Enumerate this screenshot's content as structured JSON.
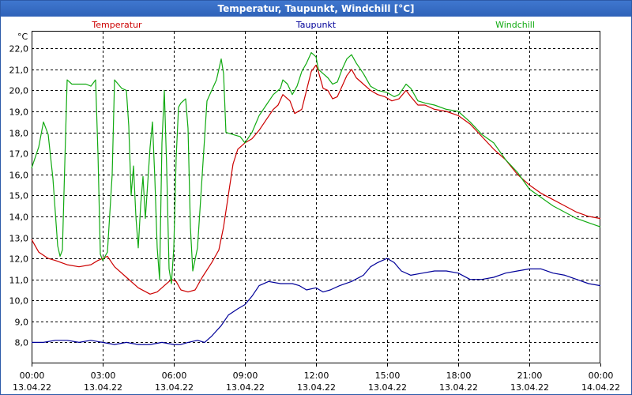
{
  "chart_data": {
    "type": "line",
    "title": "Temperatur, Taupunkt, Windchill [°C]",
    "ylabel": "°C",
    "xlabel": "",
    "ylim": [
      7.0,
      22.8
    ],
    "xlim": [
      0,
      24
    ],
    "grid": true,
    "y_ticks": [
      "8,0",
      "9,0",
      "10,0",
      "11,0",
      "12,0",
      "13,0",
      "14,0",
      "15,0",
      "16,0",
      "17,0",
      "18,0",
      "19,0",
      "20,0",
      "21,0",
      "22,0"
    ],
    "x_ticks": [
      {
        "time": "00:00",
        "date": "13.04.22"
      },
      {
        "time": "03:00",
        "date": "13.04.22"
      },
      {
        "time": "06:00",
        "date": "13.04.22"
      },
      {
        "time": "09:00",
        "date": "13.04.22"
      },
      {
        "time": "12:00",
        "date": "13.04.22"
      },
      {
        "time": "15:00",
        "date": "13.04.22"
      },
      {
        "time": "18:00",
        "date": "13.04.22"
      },
      {
        "time": "21:00",
        "date": "13.04.22"
      },
      {
        "time": "00:00",
        "date": "14.04.22"
      }
    ],
    "series": [
      {
        "name": "Temperatur",
        "color": "#cc0000",
        "points": [
          [
            0,
            12.9
          ],
          [
            0.3,
            12.3
          ],
          [
            0.7,
            12.0
          ],
          [
            1.0,
            11.9
          ],
          [
            1.5,
            11.7
          ],
          [
            2.0,
            11.6
          ],
          [
            2.5,
            11.7
          ],
          [
            2.8,
            11.9
          ],
          [
            3.0,
            12.0
          ],
          [
            3.2,
            12.1
          ],
          [
            3.5,
            11.6
          ],
          [
            4.0,
            11.1
          ],
          [
            4.5,
            10.6
          ],
          [
            5.0,
            10.3
          ],
          [
            5.3,
            10.4
          ],
          [
            5.6,
            10.7
          ],
          [
            5.9,
            11.0
          ],
          [
            6.1,
            10.9
          ],
          [
            6.3,
            10.5
          ],
          [
            6.6,
            10.4
          ],
          [
            6.9,
            10.5
          ],
          [
            7.2,
            11.1
          ],
          [
            7.6,
            11.8
          ],
          [
            7.9,
            12.4
          ],
          [
            8.1,
            13.5
          ],
          [
            8.3,
            15.0
          ],
          [
            8.5,
            16.5
          ],
          [
            8.7,
            17.2
          ],
          [
            9.0,
            17.5
          ],
          [
            9.3,
            17.7
          ],
          [
            9.6,
            18.1
          ],
          [
            9.9,
            18.6
          ],
          [
            10.2,
            19.1
          ],
          [
            10.4,
            19.3
          ],
          [
            10.6,
            19.8
          ],
          [
            10.9,
            19.5
          ],
          [
            11.1,
            18.9
          ],
          [
            11.4,
            19.1
          ],
          [
            11.6,
            20.0
          ],
          [
            11.8,
            20.9
          ],
          [
            12.0,
            21.2
          ],
          [
            12.1,
            20.9
          ],
          [
            12.3,
            20.1
          ],
          [
            12.5,
            20.0
          ],
          [
            12.7,
            19.6
          ],
          [
            12.9,
            19.7
          ],
          [
            13.1,
            20.2
          ],
          [
            13.3,
            20.7
          ],
          [
            13.5,
            21.0
          ],
          [
            13.7,
            20.6
          ],
          [
            14.0,
            20.3
          ],
          [
            14.3,
            20.0
          ],
          [
            14.6,
            19.8
          ],
          [
            14.9,
            19.7
          ],
          [
            15.2,
            19.5
          ],
          [
            15.5,
            19.6
          ],
          [
            15.8,
            20.0
          ],
          [
            16.0,
            19.7
          ],
          [
            16.3,
            19.3
          ],
          [
            16.6,
            19.3
          ],
          [
            17.0,
            19.1
          ],
          [
            17.5,
            19.0
          ],
          [
            18.0,
            18.8
          ],
          [
            18.5,
            18.4
          ],
          [
            19.0,
            17.8
          ],
          [
            19.5,
            17.2
          ],
          [
            20.0,
            16.7
          ],
          [
            20.5,
            16.0
          ],
          [
            21.0,
            15.5
          ],
          [
            21.5,
            15.1
          ],
          [
            22.0,
            14.8
          ],
          [
            22.5,
            14.5
          ],
          [
            23.0,
            14.2
          ],
          [
            23.5,
            14.0
          ],
          [
            24.0,
            13.9
          ]
        ]
      },
      {
        "name": "Taupunkt",
        "color": "#000099",
        "points": [
          [
            0,
            8.0
          ],
          [
            0.5,
            8.0
          ],
          [
            1.0,
            8.1
          ],
          [
            1.5,
            8.1
          ],
          [
            2.0,
            8.0
          ],
          [
            2.5,
            8.1
          ],
          [
            3.0,
            8.0
          ],
          [
            3.5,
            7.9
          ],
          [
            4.0,
            8.0
          ],
          [
            4.5,
            7.9
          ],
          [
            5.0,
            7.9
          ],
          [
            5.5,
            8.0
          ],
          [
            6.0,
            7.9
          ],
          [
            6.3,
            7.9
          ],
          [
            6.6,
            8.0
          ],
          [
            7.0,
            8.1
          ],
          [
            7.3,
            8.0
          ],
          [
            7.6,
            8.3
          ],
          [
            8.0,
            8.8
          ],
          [
            8.3,
            9.3
          ],
          [
            8.7,
            9.6
          ],
          [
            9.0,
            9.8
          ],
          [
            9.3,
            10.2
          ],
          [
            9.6,
            10.7
          ],
          [
            10.0,
            10.9
          ],
          [
            10.5,
            10.8
          ],
          [
            11.0,
            10.8
          ],
          [
            11.3,
            10.7
          ],
          [
            11.6,
            10.5
          ],
          [
            12.0,
            10.6
          ],
          [
            12.3,
            10.4
          ],
          [
            12.6,
            10.5
          ],
          [
            13.0,
            10.7
          ],
          [
            13.5,
            10.9
          ],
          [
            14.0,
            11.2
          ],
          [
            14.3,
            11.6
          ],
          [
            14.6,
            11.8
          ],
          [
            15.0,
            12.0
          ],
          [
            15.3,
            11.8
          ],
          [
            15.6,
            11.4
          ],
          [
            16.0,
            11.2
          ],
          [
            16.5,
            11.3
          ],
          [
            17.0,
            11.4
          ],
          [
            17.5,
            11.4
          ],
          [
            18.0,
            11.3
          ],
          [
            18.5,
            11.0
          ],
          [
            19.0,
            11.0
          ],
          [
            19.5,
            11.1
          ],
          [
            20.0,
            11.3
          ],
          [
            20.5,
            11.4
          ],
          [
            21.0,
            11.5
          ],
          [
            21.5,
            11.5
          ],
          [
            22.0,
            11.3
          ],
          [
            22.5,
            11.2
          ],
          [
            23.0,
            11.0
          ],
          [
            23.5,
            10.8
          ],
          [
            24.0,
            10.7
          ]
        ]
      },
      {
        "name": "Windchill",
        "color": "#11aa11",
        "points": [
          [
            0,
            16.3
          ],
          [
            0.3,
            17.3
          ],
          [
            0.5,
            18.5
          ],
          [
            0.7,
            17.9
          ],
          [
            0.9,
            15.8
          ],
          [
            1.1,
            12.6
          ],
          [
            1.2,
            12.1
          ],
          [
            1.3,
            12.4
          ],
          [
            1.4,
            16.5
          ],
          [
            1.5,
            20.5
          ],
          [
            1.7,
            20.3
          ],
          [
            2.0,
            20.3
          ],
          [
            2.3,
            20.3
          ],
          [
            2.5,
            20.2
          ],
          [
            2.7,
            20.5
          ],
          [
            2.8,
            17.0
          ],
          [
            2.9,
            12.2
          ],
          [
            3.0,
            11.9
          ],
          [
            3.2,
            12.3
          ],
          [
            3.4,
            16.0
          ],
          [
            3.5,
            20.5
          ],
          [
            3.8,
            20.1
          ],
          [
            4.0,
            20.0
          ],
          [
            4.1,
            18.3
          ],
          [
            4.2,
            15.0
          ],
          [
            4.3,
            16.4
          ],
          [
            4.4,
            14.0
          ],
          [
            4.5,
            12.5
          ],
          [
            4.6,
            14.5
          ],
          [
            4.7,
            15.9
          ],
          [
            4.8,
            13.9
          ],
          [
            4.9,
            15.6
          ],
          [
            5.0,
            17.3
          ],
          [
            5.1,
            18.5
          ],
          [
            5.2,
            15.8
          ],
          [
            5.3,
            12.5
          ],
          [
            5.4,
            11.0
          ],
          [
            5.5,
            17.5
          ],
          [
            5.6,
            20.0
          ],
          [
            5.7,
            16.3
          ],
          [
            5.8,
            11.5
          ],
          [
            5.9,
            10.8
          ],
          [
            6.0,
            12.5
          ],
          [
            6.1,
            16.8
          ],
          [
            6.2,
            19.2
          ],
          [
            6.3,
            19.4
          ],
          [
            6.5,
            19.6
          ],
          [
            6.6,
            18.2
          ],
          [
            6.7,
            13.5
          ],
          [
            6.8,
            11.4
          ],
          [
            7.0,
            12.5
          ],
          [
            7.2,
            16.0
          ],
          [
            7.4,
            19.5
          ],
          [
            7.6,
            20.0
          ],
          [
            7.8,
            20.5
          ],
          [
            8.0,
            21.5
          ],
          [
            8.1,
            20.8
          ],
          [
            8.2,
            18.0
          ],
          [
            8.5,
            17.9
          ],
          [
            8.8,
            17.8
          ],
          [
            9.0,
            17.5
          ],
          [
            9.3,
            18.0
          ],
          [
            9.6,
            18.8
          ],
          [
            9.9,
            19.3
          ],
          [
            10.2,
            19.8
          ],
          [
            10.5,
            20.1
          ],
          [
            10.6,
            20.5
          ],
          [
            10.8,
            20.3
          ],
          [
            11.0,
            19.8
          ],
          [
            11.2,
            20.2
          ],
          [
            11.4,
            20.9
          ],
          [
            11.6,
            21.3
          ],
          [
            11.8,
            21.8
          ],
          [
            12.0,
            21.6
          ],
          [
            12.1,
            21.0
          ],
          [
            12.3,
            20.8
          ],
          [
            12.5,
            20.6
          ],
          [
            12.7,
            20.3
          ],
          [
            12.9,
            20.4
          ],
          [
            13.1,
            21.0
          ],
          [
            13.3,
            21.5
          ],
          [
            13.5,
            21.7
          ],
          [
            13.7,
            21.3
          ],
          [
            14.0,
            20.8
          ],
          [
            14.3,
            20.2
          ],
          [
            14.6,
            20.0
          ],
          [
            15.0,
            19.9
          ],
          [
            15.3,
            19.7
          ],
          [
            15.5,
            19.8
          ],
          [
            15.8,
            20.3
          ],
          [
            16.0,
            20.1
          ],
          [
            16.3,
            19.5
          ],
          [
            16.6,
            19.4
          ],
          [
            17.0,
            19.3
          ],
          [
            17.5,
            19.1
          ],
          [
            18.0,
            19.0
          ],
          [
            18.5,
            18.5
          ],
          [
            19.0,
            17.9
          ],
          [
            19.5,
            17.5
          ],
          [
            20.0,
            16.7
          ],
          [
            20.5,
            16.1
          ],
          [
            21.0,
            15.3
          ],
          [
            21.5,
            14.9
          ],
          [
            22.0,
            14.5
          ],
          [
            22.5,
            14.2
          ],
          [
            23.0,
            13.9
          ],
          [
            23.5,
            13.7
          ],
          [
            24.0,
            13.5
          ]
        ]
      }
    ]
  }
}
